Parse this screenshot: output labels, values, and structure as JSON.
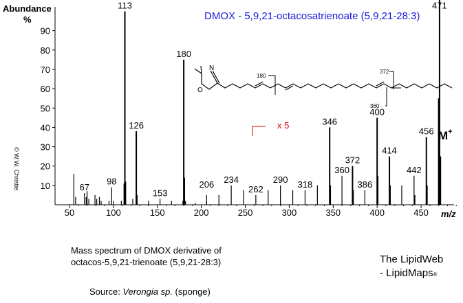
{
  "chart_data": {
    "type": "bar",
    "title": "DMOX - 5,9,21-octacosatrienoate (5,9,21-28:3)",
    "ylabel": "Abundance",
    "ylabel_unit": "%",
    "xlabel": "m/z",
    "xlim": [
      40,
      500
    ],
    "ylim": [
      0,
      100
    ],
    "x_ticks": [
      50,
      100,
      150,
      200,
      250,
      300,
      350,
      400,
      450
    ],
    "y_ticks": [
      10,
      20,
      30,
      40,
      50,
      60,
      70,
      80,
      90
    ],
    "peaks": [
      {
        "mz": 55,
        "y": 16
      },
      {
        "mz": 57,
        "y": 4
      },
      {
        "mz": 67,
        "y": 6
      },
      {
        "mz": 69,
        "y": 4
      },
      {
        "mz": 70,
        "y": 7
      },
      {
        "mz": 72,
        "y": 3
      },
      {
        "mz": 79,
        "y": 5
      },
      {
        "mz": 81,
        "y": 3
      },
      {
        "mz": 84,
        "y": 4
      },
      {
        "mz": 86,
        "y": 2
      },
      {
        "mz": 95,
        "y": 2
      },
      {
        "mz": 98,
        "y": 9
      },
      {
        "mz": 100,
        "y": 2
      },
      {
        "mz": 109,
        "y": 2
      },
      {
        "mz": 112,
        "y": 11
      },
      {
        "mz": 113,
        "y": 100
      },
      {
        "mz": 114,
        "y": 12
      },
      {
        "mz": 122,
        "y": 3
      },
      {
        "mz": 126,
        "y": 38
      },
      {
        "mz": 127,
        "y": 5
      },
      {
        "mz": 140,
        "y": 2
      },
      {
        "mz": 153,
        "y": 3
      },
      {
        "mz": 166,
        "y": 2
      },
      {
        "mz": 179,
        "y": 2
      },
      {
        "mz": 180,
        "y": 75
      },
      {
        "mz": 181,
        "y": 14
      },
      {
        "mz": 182,
        "y": 2
      },
      {
        "mz": 193,
        "y": 1
      },
      {
        "mz": 206,
        "y": 1.5
      }
    ],
    "peaks_x5": [
      {
        "mz": 206,
        "y": 1
      },
      {
        "mz": 220,
        "y": 1
      },
      {
        "mz": 234,
        "y": 2
      },
      {
        "mz": 248,
        "y": 1.5
      },
      {
        "mz": 262,
        "y": 1
      },
      {
        "mz": 276,
        "y": 1.5
      },
      {
        "mz": 290,
        "y": 2
      },
      {
        "mz": 304,
        "y": 1.5
      },
      {
        "mz": 318,
        "y": 1.5
      },
      {
        "mz": 332,
        "y": 2
      },
      {
        "mz": 346,
        "y": 8
      },
      {
        "mz": 347,
        "y": 2
      },
      {
        "mz": 360,
        "y": 3
      },
      {
        "mz": 372,
        "y": 4
      },
      {
        "mz": 373,
        "y": 1.5
      },
      {
        "mz": 386,
        "y": 1.5
      },
      {
        "mz": 400,
        "y": 9
      },
      {
        "mz": 401,
        "y": 3
      },
      {
        "mz": 414,
        "y": 5
      },
      {
        "mz": 415,
        "y": 2
      },
      {
        "mz": 428,
        "y": 2
      },
      {
        "mz": 442,
        "y": 3
      },
      {
        "mz": 443,
        "y": 1
      },
      {
        "mz": 456,
        "y": 7
      },
      {
        "mz": 457,
        "y": 2
      },
      {
        "mz": 470,
        "y": 11
      },
      {
        "mz": 471,
        "y": 25
      },
      {
        "mz": 472,
        "y": 5
      }
    ],
    "peak_labels": [
      {
        "text": "67",
        "mz": 67,
        "y": 6
      },
      {
        "text": "98",
        "mz": 98,
        "y": 9
      },
      {
        "text": "113",
        "mz": 113,
        "y": 100
      },
      {
        "text": "126",
        "mz": 126,
        "y": 38
      },
      {
        "text": "153",
        "mz": 153,
        "y": 3
      },
      {
        "text": "180",
        "mz": 180,
        "y": 75
      },
      {
        "text": "206",
        "mz": 206,
        "y": 1.5
      },
      {
        "text": "234",
        "mz": 234,
        "y": 2
      },
      {
        "text": "262",
        "mz": 262,
        "y": 1
      },
      {
        "text": "290",
        "mz": 290,
        "y": 2
      },
      {
        "text": "318",
        "mz": 318,
        "y": 1.5
      },
      {
        "text": "346",
        "mz": 346,
        "y": 8
      },
      {
        "text": "360",
        "mz": 360,
        "y": 3
      },
      {
        "text": "372",
        "mz": 372,
        "y": 4
      },
      {
        "text": "386",
        "mz": 386,
        "y": 1.5
      },
      {
        "text": "400",
        "mz": 400,
        "y": 9
      },
      {
        "text": "414",
        "mz": 414,
        "y": 5
      },
      {
        "text": "442",
        "mz": 442,
        "y": 3
      },
      {
        "text": "456",
        "mz": 456,
        "y": 7
      },
      {
        "text": "471",
        "mz": 471,
        "y": 25
      }
    ],
    "magnification": {
      "label": "x 5",
      "start_mz": 255
    },
    "molecular_ion_label": "M",
    "molecular_ion_superscript": "+",
    "title_color": "#1a1adc",
    "magnification_color": "#e00000",
    "bar_color": "#000000",
    "structure_labels": {
      "left": "180",
      "right_top": "372",
      "right_bottom": "360"
    }
  },
  "copyright": "© W.W. Christie",
  "caption": {
    "line1": "Mass spectrum of DMOX derivative of",
    "line2": "octacos-5,9,21-trienoate  (5,9,21-28:3)",
    "source_prefix": "Source: ",
    "source_species": "Verongia sp.",
    "source_suffix": " (sponge)"
  },
  "brand": {
    "line1": "The LipidWeb",
    "line2": "- LipidMaps",
    "reg": "®"
  }
}
